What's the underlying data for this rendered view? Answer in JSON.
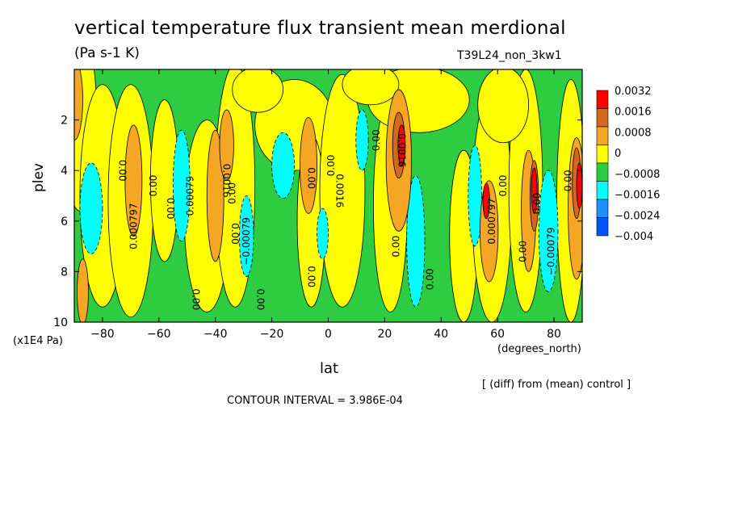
{
  "chart_data": {
    "type": "heatmap",
    "title": "vertical temperature flux transient mean merdional",
    "units": "(Pa s-1 K)",
    "experiment": "T39L24_non_3kw1",
    "xlabel": "lat",
    "x_units": "(degrees_north)",
    "ylabel": "plev",
    "y_units": "(x1E4 Pa)",
    "annotation": "[ (diff) from (mean) control ]",
    "contour_interval": "CONTOUR INTERVAL = 3.986E-04",
    "xlim": [
      -90,
      90
    ],
    "ylim": [
      10,
      0
    ],
    "x_ticks": [
      -80,
      -60,
      -40,
      -20,
      0,
      20,
      40,
      60,
      80
    ],
    "y_ticks": [
      2,
      4,
      6,
      8,
      10
    ],
    "legend": {
      "position": "right",
      "labels": [
        "0.0032",
        "0.0016",
        "0.0008",
        "0",
        "−0.0008",
        "−0.0016",
        "−0.0024",
        "−0.004"
      ],
      "colors": [
        "#ff0000",
        "#d2691e",
        "#f5a623",
        "#ffff00",
        "#2ecc40",
        "#00ffff",
        "#1e90ff",
        "#0055ff"
      ]
    },
    "levels": [
      -0.004,
      -0.0024,
      -0.0016,
      -0.0008,
      0,
      0.0008,
      0.0016,
      0.0032
    ],
    "contour_labels": [
      {
        "text": "0.00",
        "lat": -73,
        "plev": 4.0,
        "rot": 90
      },
      {
        "text": "0.000797",
        "lat": -69,
        "plev": 6.2,
        "rot": -90
      },
      {
        "text": "0.00",
        "lat": -62,
        "plev": 4.6,
        "rot": -90
      },
      {
        "text": "0.00",
        "lat": -56,
        "plev": 5.5,
        "rot": 90
      },
      {
        "text": "0.00079",
        "lat": -49,
        "plev": 5.0,
        "rot": -90
      },
      {
        "text": "0.00",
        "lat": -47,
        "plev": 9.1,
        "rot": 90
      },
      {
        "text": "0.0016",
        "lat": -36,
        "plev": 4.4,
        "rot": 90
      },
      {
        "text": "0.00",
        "lat": -34,
        "plev": 4.9,
        "rot": -90
      },
      {
        "text": "0.00",
        "lat": -33,
        "plev": 6.5,
        "rot": 90
      },
      {
        "text": "−0.00079",
        "lat": -29,
        "plev": 6.8,
        "rot": -90
      },
      {
        "text": "0.00",
        "lat": -24,
        "plev": 9.1,
        "rot": 90
      },
      {
        "text": "0.00",
        "lat": -6,
        "plev": 4.3,
        "rot": 90
      },
      {
        "text": "0.00",
        "lat": -6,
        "plev": 8.2,
        "rot": 90
      },
      {
        "text": "0.00",
        "lat": 1,
        "plev": 3.8,
        "rot": -90
      },
      {
        "text": "0.0016",
        "lat": 4,
        "plev": 4.8,
        "rot": 90
      },
      {
        "text": "0.00",
        "lat": 17,
        "plev": 2.8,
        "rot": -90
      },
      {
        "text": "0.0016",
        "lat": 26,
        "plev": 3.2,
        "rot": 90
      },
      {
        "text": "0.00",
        "lat": 24,
        "plev": 7.0,
        "rot": -90
      },
      {
        "text": "0.00",
        "lat": 36,
        "plev": 8.3,
        "rot": -90
      },
      {
        "text": "0.000797",
        "lat": 58,
        "plev": 6.0,
        "rot": -90
      },
      {
        "text": "0.00",
        "lat": 62,
        "plev": 4.6,
        "rot": -90
      },
      {
        "text": "0.00",
        "lat": 69,
        "plev": 7.2,
        "rot": -90
      },
      {
        "text": "0.00",
        "lat": 74,
        "plev": 5.3,
        "rot": -90
      },
      {
        "text": "−0.00079",
        "lat": 79,
        "plev": 7.2,
        "rot": -90
      },
      {
        "text": "0.00",
        "lat": 85,
        "plev": 4.4,
        "rot": -90
      }
    ]
  }
}
